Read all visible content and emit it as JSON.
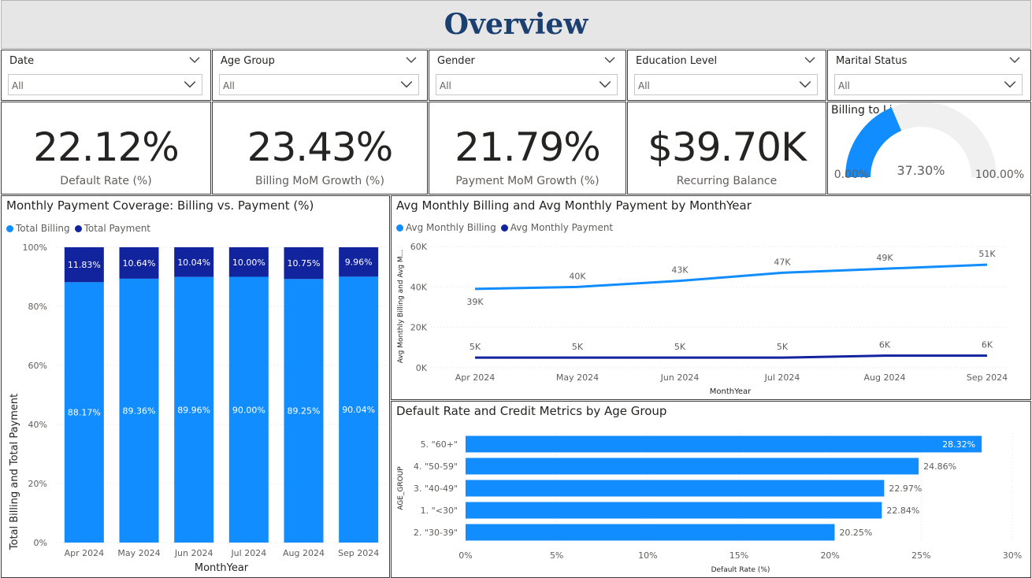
{
  "title": "Overview",
  "slicers": [
    {
      "label": "Date",
      "value": "All"
    },
    {
      "label": "Age Group",
      "value": "All"
    },
    {
      "label": "Gender",
      "value": "All"
    },
    {
      "label": "Education Level",
      "value": "All"
    },
    {
      "label": "Marital Status",
      "value": "All"
    }
  ],
  "kpis": [
    {
      "value": "22.12%",
      "label": "Default Rate (%)"
    },
    {
      "value": "23.43%",
      "label": "Billing MoM Growth (%)"
    },
    {
      "value": "21.79%",
      "label": "Payment MoM Growth (%)"
    },
    {
      "value": "$39.70K",
      "label": "Recurring Balance"
    }
  ],
  "gauge": {
    "title": "Billing to Limit Ratio",
    "value": 37.3,
    "value_label": "37.30%",
    "min_label": "0.00%",
    "max_label": "100.00%",
    "fill_color": "#118dff",
    "track_color": "#f0f0f0"
  },
  "colors": {
    "billing": "#118dff",
    "payment": "#12239e",
    "gauge_fill": "#118dff"
  },
  "chart_data": [
    {
      "type": "bar",
      "stacking": "percent",
      "title": "Monthly Payment Coverage: Billing vs. Payment (%)",
      "xlabel": "MonthYear",
      "ylabel": "Total Billing and Total Payment",
      "categories": [
        "Apr 2024",
        "May 2024",
        "Jun 2024",
        "Jul 2024",
        "Aug 2024",
        "Sep 2024"
      ],
      "series": [
        {
          "name": "Total Billing",
          "values": [
            88.17,
            89.36,
            89.96,
            90.0,
            89.25,
            90.04
          ],
          "labels": [
            "88.17%",
            "89.36%",
            "89.96%",
            "90.00%",
            "89.25%",
            "90.04%"
          ],
          "color": "#118dff"
        },
        {
          "name": "Total Payment",
          "values": [
            11.83,
            10.64,
            10.04,
            10.0,
            10.75,
            9.96
          ],
          "labels": [
            "11.83%",
            "10.64%",
            "10.04%",
            "10.00%",
            "10.75%",
            "9.96%"
          ],
          "color": "#12239e"
        }
      ],
      "ylim": [
        0,
        100
      ],
      "yticks": [
        "0%",
        "20%",
        "40%",
        "60%",
        "80%",
        "100%"
      ],
      "legend": "top-left",
      "grid": true
    },
    {
      "type": "line",
      "title": "Avg Monthly Billing and Avg Monthly Payment by MonthYear",
      "xlabel": "MonthYear",
      "ylabel": "Avg Monthly Billing and Avg M...",
      "categories": [
        "Apr 2024",
        "May 2024",
        "Jun 2024",
        "Jul 2024",
        "Aug 2024",
        "Sep 2024"
      ],
      "series": [
        {
          "name": "Avg Monthly Billing",
          "values": [
            39000,
            40000,
            43000,
            47000,
            49000,
            51000
          ],
          "labels": [
            "39K",
            "40K",
            "43K",
            "47K",
            "49K",
            "51K"
          ],
          "color": "#118dff"
        },
        {
          "name": "Avg Monthly Payment",
          "values": [
            5000,
            5000,
            5000,
            5000,
            6000,
            6000
          ],
          "labels": [
            "5K",
            "5K",
            "5K",
            "5K",
            "6K",
            "6K"
          ],
          "color": "#12239e"
        }
      ],
      "ylim": [
        0,
        60000
      ],
      "yticks": [
        "0K",
        "20K",
        "40K",
        "60K"
      ],
      "legend": "top-left",
      "grid": true
    },
    {
      "type": "bar",
      "orientation": "horizontal",
      "title": "Default Rate and Credit Metrics by Age Group",
      "xlabel": "Default Rate (%)",
      "ylabel": "AGE_GROUP",
      "categories": [
        "5. \"60+\"",
        "4. \"50-59\"",
        "3. \"40-49\"",
        "1. \"<30\"",
        "2. \"30-39\""
      ],
      "values": [
        28.32,
        24.86,
        22.97,
        22.84,
        20.25
      ],
      "labels": [
        "28.32%",
        "24.86%",
        "22.97%",
        "22.84%",
        "20.25%"
      ],
      "xlim": [
        0,
        30
      ],
      "xticks": [
        "0%",
        "5%",
        "10%",
        "15%",
        "20%",
        "25%",
        "30%"
      ],
      "color": "#118dff",
      "grid": true
    }
  ]
}
